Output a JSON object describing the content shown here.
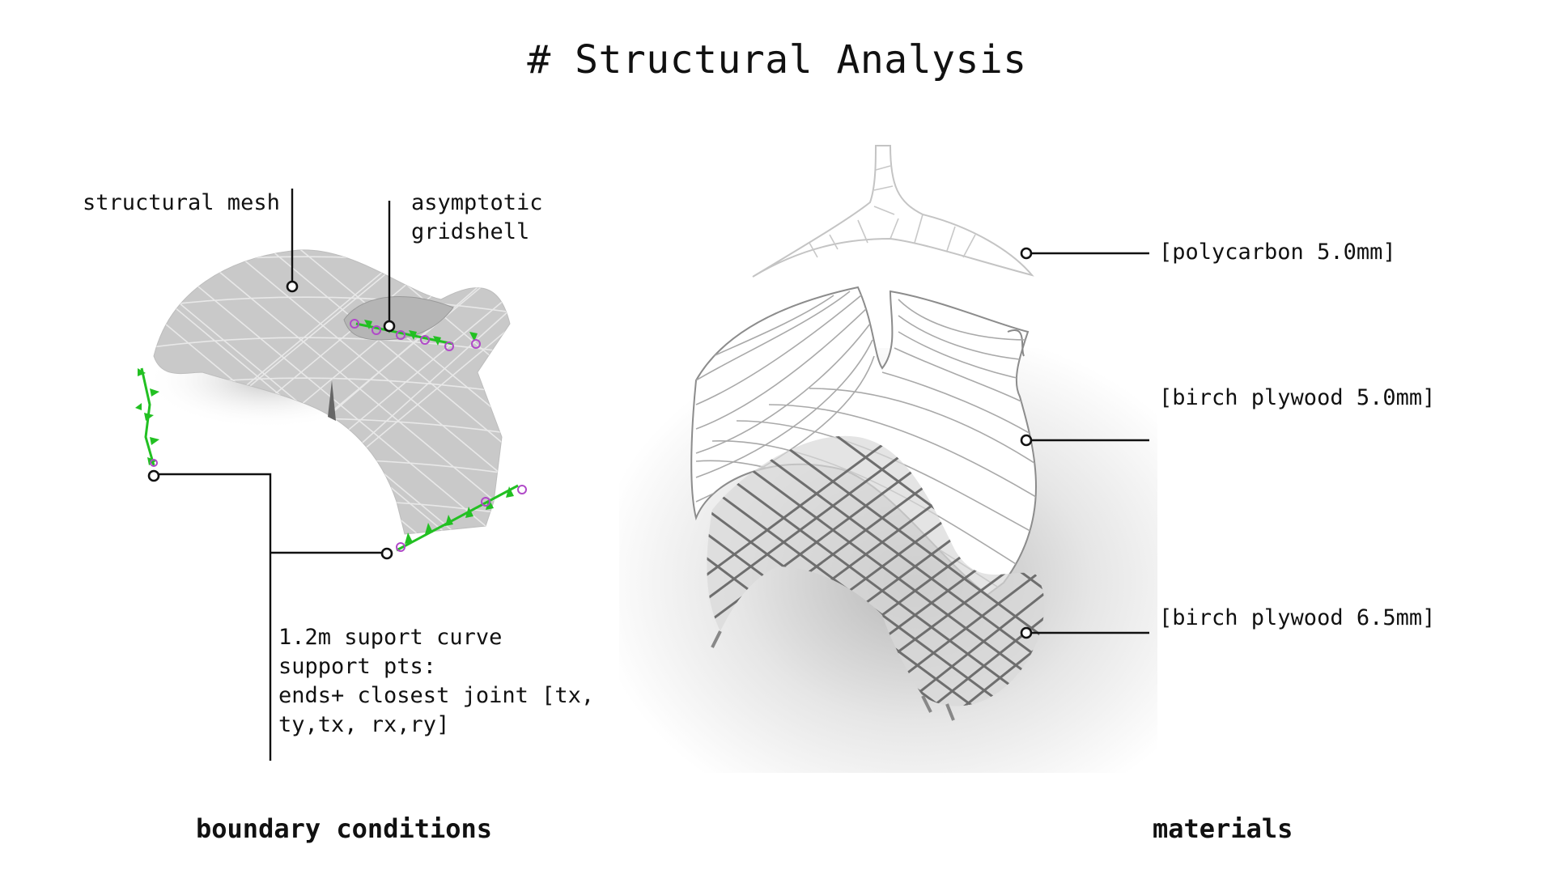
{
  "title": "# Structural Analysis",
  "boundary": {
    "label_structural_mesh": "structural mesh",
    "label_asymptotic_line1": "asymptotic",
    "label_asymptotic_line2": "gridshell",
    "support_note": [
      "1.2m suport curve",
      "support pts:",
      "ends+ closest joint [tx,",
      "ty,tx, rx,ry]"
    ],
    "section_title": "boundary conditions"
  },
  "materials": {
    "layers": [
      "[polycarbon 5.0mm]",
      "[birch plywood 5.0mm]",
      "[birch plywood 6.5mm]"
    ],
    "section_title": "materials"
  },
  "colors": {
    "support_green": "#22c022",
    "support_magenta": "#b04ac8",
    "mesh_gray": "#c9c9c9",
    "line": "#111111"
  }
}
